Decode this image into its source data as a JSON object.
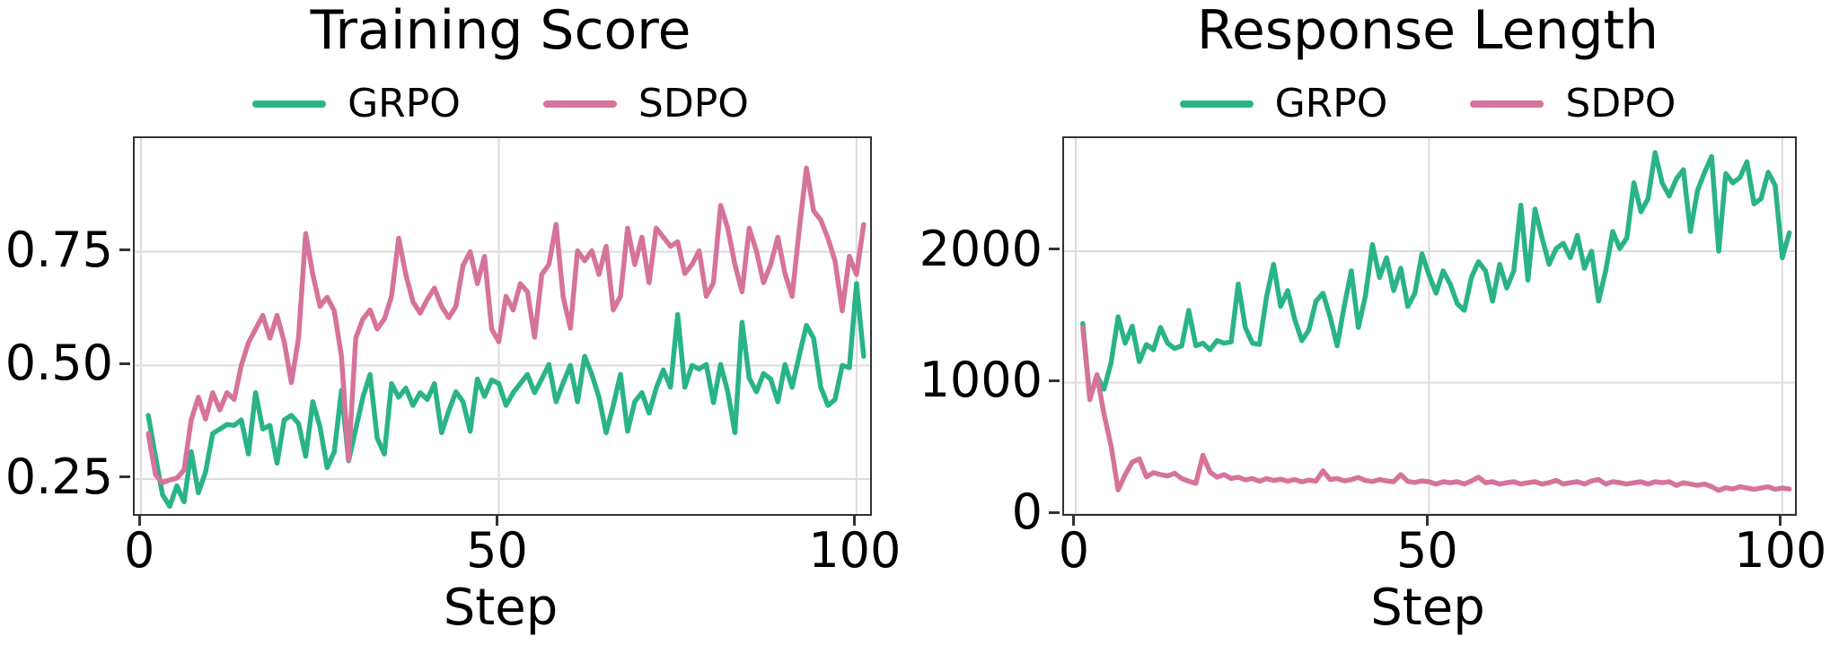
{
  "figure": {
    "background": "#ffffff",
    "text_color": "#000000",
    "grid_color": "#dcdcdc",
    "spine_color": "#333333"
  },
  "chart_data": [
    {
      "type": "line",
      "title": "Training Score",
      "xlabel": "Step",
      "ylabel": "",
      "grid": true,
      "legend_position": "above",
      "xlim": [
        -0.9,
        101.9
      ],
      "ylim": [
        0.173,
        1.0
      ],
      "xticks": [
        0,
        50,
        100
      ],
      "xtick_labels": [
        "0",
        "50",
        "100"
      ],
      "yticks": [
        0.25,
        0.5,
        0.75
      ],
      "ytick_labels": [
        "0.25",
        "0.50",
        "0.75"
      ],
      "x": [
        1,
        2,
        3,
        4,
        5,
        6,
        7,
        8,
        9,
        10,
        11,
        12,
        13,
        14,
        15,
        16,
        17,
        18,
        19,
        20,
        21,
        22,
        23,
        24,
        25,
        26,
        27,
        28,
        29,
        30,
        31,
        32,
        33,
        34,
        35,
        36,
        37,
        38,
        39,
        40,
        41,
        42,
        43,
        44,
        45,
        46,
        47,
        48,
        49,
        50,
        51,
        52,
        53,
        54,
        55,
        56,
        57,
        58,
        59,
        60,
        61,
        62,
        63,
        64,
        65,
        66,
        67,
        68,
        69,
        70,
        71,
        72,
        73,
        74,
        75,
        76,
        77,
        78,
        79,
        80,
        81,
        82,
        83,
        84,
        85,
        86,
        87,
        88,
        89,
        90,
        91,
        92,
        93,
        94,
        95,
        96,
        97,
        98,
        99,
        100,
        101
      ],
      "series": [
        {
          "name": "GRPO",
          "color": "#2ab389",
          "values": [
            0.39,
            0.3,
            0.215,
            0.19,
            0.235,
            0.2,
            0.31,
            0.22,
            0.265,
            0.35,
            0.36,
            0.37,
            0.368,
            0.38,
            0.305,
            0.44,
            0.36,
            0.368,
            0.285,
            0.38,
            0.39,
            0.372,
            0.3,
            0.42,
            0.365,
            0.275,
            0.31,
            0.445,
            0.29,
            0.36,
            0.43,
            0.48,
            0.34,
            0.305,
            0.46,
            0.43,
            0.45,
            0.412,
            0.44,
            0.425,
            0.46,
            0.352,
            0.4,
            0.442,
            0.42,
            0.355,
            0.47,
            0.432,
            0.468,
            0.46,
            0.412,
            0.44,
            0.46,
            0.48,
            0.44,
            0.47,
            0.502,
            0.42,
            0.462,
            0.5,
            0.42,
            0.52,
            0.48,
            0.43,
            0.352,
            0.412,
            0.48,
            0.355,
            0.42,
            0.44,
            0.395,
            0.45,
            0.49,
            0.452,
            0.612,
            0.452,
            0.5,
            0.492,
            0.502,
            0.418,
            0.502,
            0.442,
            0.352,
            0.595,
            0.472,
            0.442,
            0.482,
            0.47,
            0.42,
            0.502,
            0.452,
            0.522,
            0.588,
            0.56,
            0.452,
            0.412,
            0.425,
            0.5,
            0.495,
            0.68,
            0.52
          ]
        },
        {
          "name": "SDPO",
          "color": "#d6739b",
          "values": [
            0.35,
            0.26,
            0.242,
            0.248,
            0.252,
            0.27,
            0.38,
            0.43,
            0.382,
            0.44,
            0.402,
            0.44,
            0.425,
            0.5,
            0.55,
            0.58,
            0.61,
            0.56,
            0.61,
            0.552,
            0.462,
            0.56,
            0.79,
            0.7,
            0.63,
            0.65,
            0.62,
            0.52,
            0.292,
            0.56,
            0.602,
            0.622,
            0.58,
            0.602,
            0.652,
            0.78,
            0.7,
            0.64,
            0.615,
            0.645,
            0.67,
            0.63,
            0.605,
            0.63,
            0.72,
            0.75,
            0.68,
            0.74,
            0.58,
            0.552,
            0.652,
            0.622,
            0.68,
            0.662,
            0.562,
            0.7,
            0.722,
            0.81,
            0.65,
            0.582,
            0.752,
            0.73,
            0.752,
            0.7,
            0.762,
            0.622,
            0.652,
            0.802,
            0.722,
            0.782,
            0.682,
            0.802,
            0.782,
            0.762,
            0.772,
            0.702,
            0.722,
            0.752,
            0.652,
            0.682,
            0.852,
            0.802,
            0.722,
            0.662,
            0.802,
            0.752,
            0.682,
            0.722,
            0.782,
            0.702,
            0.652,
            0.8,
            0.934,
            0.84,
            0.82,
            0.78,
            0.73,
            0.62,
            0.74,
            0.7,
            0.81
          ]
        }
      ]
    },
    {
      "type": "line",
      "title": "Response Length",
      "xlabel": "Step",
      "ylabel": "",
      "grid": true,
      "legend_position": "above",
      "xlim": [
        -1.65,
        101.8
      ],
      "ylim": [
        0,
        2860
      ],
      "xticks": [
        0,
        50,
        100
      ],
      "xtick_labels": [
        "0",
        "50",
        "100"
      ],
      "yticks": [
        0,
        1000,
        2000
      ],
      "ytick_labels": [
        "0",
        "1000",
        "2000"
      ],
      "x": [
        1,
        2,
        3,
        4,
        5,
        6,
        7,
        8,
        9,
        10,
        11,
        12,
        13,
        14,
        15,
        16,
        17,
        18,
        19,
        20,
        21,
        22,
        23,
        24,
        25,
        26,
        27,
        28,
        29,
        30,
        31,
        32,
        33,
        34,
        35,
        36,
        37,
        38,
        39,
        40,
        41,
        42,
        43,
        44,
        45,
        46,
        47,
        48,
        49,
        50,
        51,
        52,
        53,
        54,
        55,
        56,
        57,
        58,
        59,
        60,
        61,
        62,
        63,
        64,
        65,
        66,
        67,
        68,
        69,
        70,
        71,
        72,
        73,
        74,
        75,
        76,
        77,
        78,
        79,
        80,
        81,
        82,
        83,
        84,
        85,
        86,
        87,
        88,
        89,
        90,
        91,
        92,
        93,
        94,
        95,
        96,
        97,
        98,
        99,
        100,
        101
      ],
      "series": [
        {
          "name": "GRPO",
          "color": "#2ab389",
          "values": [
            1450,
            880,
            1050,
            950,
            1150,
            1500,
            1300,
            1430,
            1160,
            1290,
            1250,
            1420,
            1300,
            1260,
            1280,
            1550,
            1280,
            1300,
            1250,
            1320,
            1300,
            1310,
            1750,
            1420,
            1300,
            1290,
            1650,
            1900,
            1580,
            1700,
            1480,
            1320,
            1400,
            1620,
            1680,
            1500,
            1280,
            1580,
            1850,
            1420,
            1660,
            2050,
            1800,
            1950,
            1700,
            1870,
            1580,
            1680,
            1980,
            1820,
            1680,
            1850,
            1750,
            1600,
            1550,
            1800,
            1920,
            1850,
            1620,
            1900,
            1720,
            1850,
            2350,
            1780,
            2320,
            2100,
            1900,
            2020,
            2060,
            1950,
            2120,
            1870,
            2000,
            1620,
            1850,
            2150,
            2020,
            2100,
            2520,
            2300,
            2400,
            2750,
            2520,
            2420,
            2550,
            2620,
            2150,
            2460,
            2600,
            2720,
            2000,
            2590,
            2520,
            2560,
            2680,
            2360,
            2400,
            2600,
            2500,
            1950,
            2140
          ]
        },
        {
          "name": "SDPO",
          "color": "#d6739b",
          "values": [
            1420,
            870,
            1060,
            760,
            520,
            184,
            300,
            395,
            420,
            283,
            315,
            300,
            290,
            310,
            270,
            250,
            233,
            447,
            320,
            280,
            300,
            270,
            280,
            260,
            270,
            250,
            270,
            255,
            265,
            250,
            262,
            245,
            258,
            250,
            329,
            262,
            270,
            252,
            262,
            278,
            255,
            248,
            262,
            252,
            246,
            300,
            248,
            240,
            252,
            246,
            228,
            246,
            238,
            246,
            228,
            252,
            280,
            238,
            246,
            228,
            238,
            246,
            228,
            238,
            246,
            228,
            238,
            256,
            228,
            238,
            246,
            228,
            252,
            262,
            228,
            246,
            238,
            228,
            238,
            246,
            228,
            246,
            238,
            246,
            218,
            238,
            228,
            218,
            228,
            208,
            180,
            200,
            190,
            208,
            198,
            188,
            198,
            208,
            188,
            198,
            190
          ]
        }
      ]
    }
  ]
}
